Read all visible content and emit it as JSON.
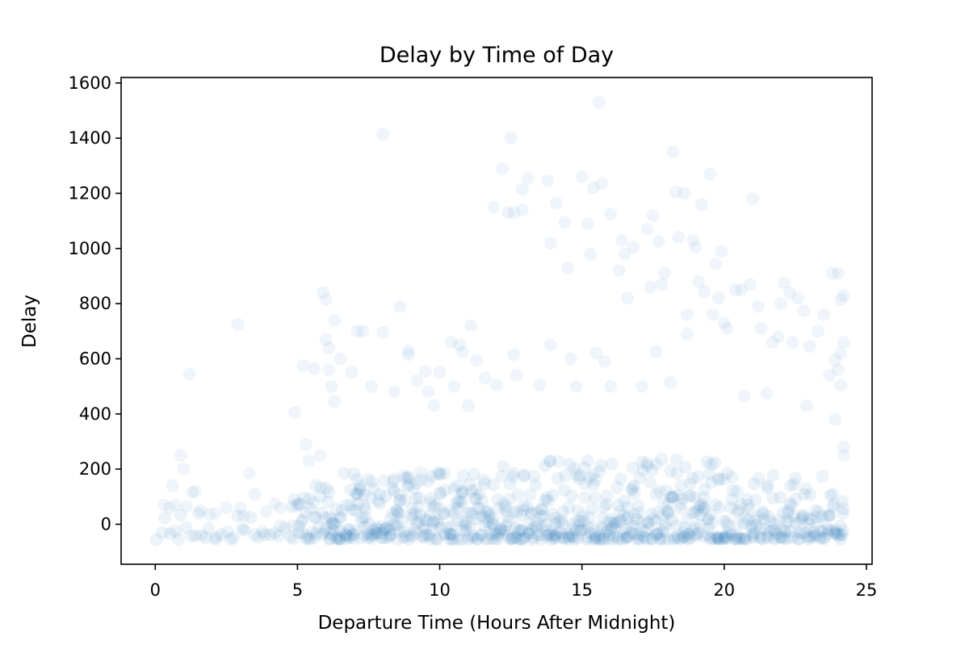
{
  "chart_data": {
    "type": "scatter",
    "title": "Delay by Time of Day",
    "xlabel": "Departure Time (Hours After Midnight)",
    "ylabel": "Delay",
    "xlim": [
      -1.2,
      25.2
    ],
    "ylim": [
      -145,
      1620
    ],
    "xticks": [
      0,
      5,
      10,
      15,
      20,
      25
    ],
    "yticks": [
      0,
      200,
      400,
      600,
      800,
      1000,
      1200,
      1400,
      1600
    ],
    "grid": false,
    "legend": "none",
    "color": "#1f77b4",
    "point_opacity": 0.07,
    "series": [
      {
        "points": [
          [
            0.3,
            70
          ],
          [
            0.5,
            60
          ],
          [
            0.6,
            140
          ],
          [
            0.7,
            70
          ],
          [
            0.9,
            250
          ],
          [
            1.0,
            200
          ],
          [
            1.1,
            65
          ],
          [
            1.2,
            545
          ],
          [
            1.3,
            115
          ],
          [
            1.4,
            120
          ],
          [
            1.6,
            50
          ],
          [
            1.9,
            35
          ],
          [
            2.1,
            40
          ],
          [
            2.5,
            60
          ],
          [
            2.9,
            725
          ],
          [
            3.0,
            60
          ],
          [
            3.1,
            30
          ],
          [
            3.3,
            185
          ],
          [
            3.5,
            110
          ],
          [
            3.9,
            45
          ],
          [
            4.2,
            75
          ],
          [
            4.4,
            60
          ],
          [
            4.9,
            405
          ],
          [
            5.2,
            575
          ],
          [
            5.3,
            290
          ],
          [
            5.4,
            230
          ],
          [
            5.6,
            565
          ],
          [
            5.8,
            250
          ],
          [
            5.9,
            840
          ],
          [
            6.0,
            815
          ],
          [
            6.0,
            670
          ],
          [
            6.1,
            640
          ],
          [
            6.1,
            560
          ],
          [
            6.2,
            500
          ],
          [
            6.3,
            740
          ],
          [
            6.3,
            445
          ],
          [
            6.5,
            600
          ],
          [
            6.9,
            550
          ],
          [
            7.1,
            700
          ],
          [
            7.3,
            700
          ],
          [
            7.6,
            500
          ],
          [
            8.0,
            1415
          ],
          [
            8.0,
            695
          ],
          [
            8.4,
            480
          ],
          [
            8.6,
            790
          ],
          [
            8.9,
            630
          ],
          [
            8.9,
            615
          ],
          [
            9.2,
            520
          ],
          [
            9.5,
            555
          ],
          [
            9.6,
            480
          ],
          [
            9.8,
            430
          ],
          [
            10.0,
            550
          ],
          [
            10.4,
            660
          ],
          [
            10.5,
            500
          ],
          [
            10.7,
            650
          ],
          [
            10.8,
            625
          ],
          [
            11.0,
            430
          ],
          [
            11.1,
            720
          ],
          [
            11.3,
            595
          ],
          [
            11.6,
            530
          ],
          [
            11.9,
            1150
          ],
          [
            12.0,
            505
          ],
          [
            12.2,
            1290
          ],
          [
            12.4,
            1130
          ],
          [
            12.5,
            1400
          ],
          [
            12.6,
            1130
          ],
          [
            12.6,
            615
          ],
          [
            12.7,
            540
          ],
          [
            12.9,
            1140
          ],
          [
            12.9,
            1215
          ],
          [
            13.1,
            1255
          ],
          [
            13.5,
            505
          ],
          [
            13.8,
            1245
          ],
          [
            13.9,
            650
          ],
          [
            13.9,
            1020
          ],
          [
            14.1,
            1165
          ],
          [
            14.4,
            1095
          ],
          [
            14.5,
            930
          ],
          [
            14.6,
            600
          ],
          [
            14.8,
            500
          ],
          [
            15.0,
            1260
          ],
          [
            15.2,
            1090
          ],
          [
            15.3,
            980
          ],
          [
            15.4,
            1220
          ],
          [
            15.5,
            620
          ],
          [
            15.6,
            1530
          ],
          [
            15.7,
            1235
          ],
          [
            15.8,
            590
          ],
          [
            16.0,
            500
          ],
          [
            16.0,
            1125
          ],
          [
            16.3,
            920
          ],
          [
            16.4,
            1030
          ],
          [
            16.5,
            980
          ],
          [
            16.6,
            820
          ],
          [
            16.8,
            1005
          ],
          [
            17.1,
            500
          ],
          [
            17.3,
            1070
          ],
          [
            17.4,
            860
          ],
          [
            17.5,
            1120
          ],
          [
            17.6,
            625
          ],
          [
            17.7,
            1025
          ],
          [
            17.8,
            870
          ],
          [
            17.9,
            910
          ],
          [
            18.1,
            515
          ],
          [
            18.2,
            1350
          ],
          [
            18.3,
            1205
          ],
          [
            18.4,
            1040
          ],
          [
            18.6,
            1200
          ],
          [
            18.7,
            760
          ],
          [
            18.7,
            690
          ],
          [
            18.9,
            1030
          ],
          [
            19.0,
            1005
          ],
          [
            19.1,
            880
          ],
          [
            19.2,
            1160
          ],
          [
            19.3,
            845
          ],
          [
            19.5,
            1270
          ],
          [
            19.6,
            760
          ],
          [
            19.7,
            945
          ],
          [
            19.8,
            820
          ],
          [
            19.9,
            990
          ],
          [
            20.0,
            730
          ],
          [
            20.1,
            710
          ],
          [
            20.4,
            850
          ],
          [
            20.6,
            850
          ],
          [
            20.7,
            465
          ],
          [
            20.9,
            870
          ],
          [
            21.0,
            1180
          ],
          [
            21.2,
            790
          ],
          [
            21.3,
            710
          ],
          [
            21.5,
            475
          ],
          [
            21.7,
            660
          ],
          [
            21.9,
            680
          ],
          [
            22.0,
            800
          ],
          [
            22.1,
            875
          ],
          [
            22.3,
            840
          ],
          [
            22.4,
            660
          ],
          [
            22.6,
            820
          ],
          [
            22.8,
            775
          ],
          [
            22.9,
            430
          ],
          [
            23.0,
            645
          ],
          [
            23.3,
            700
          ],
          [
            23.5,
            760
          ],
          [
            23.7,
            540
          ],
          [
            23.8,
            910
          ],
          [
            23.9,
            595
          ],
          [
            23.9,
            380
          ],
          [
            24.0,
            910
          ],
          [
            24.0,
            560
          ],
          [
            24.1,
            815
          ],
          [
            24.1,
            505
          ],
          [
            24.1,
            620
          ],
          [
            24.2,
            660
          ],
          [
            24.2,
            830
          ],
          [
            24.2,
            280
          ],
          [
            24.2,
            250
          ]
        ]
      }
    ]
  }
}
